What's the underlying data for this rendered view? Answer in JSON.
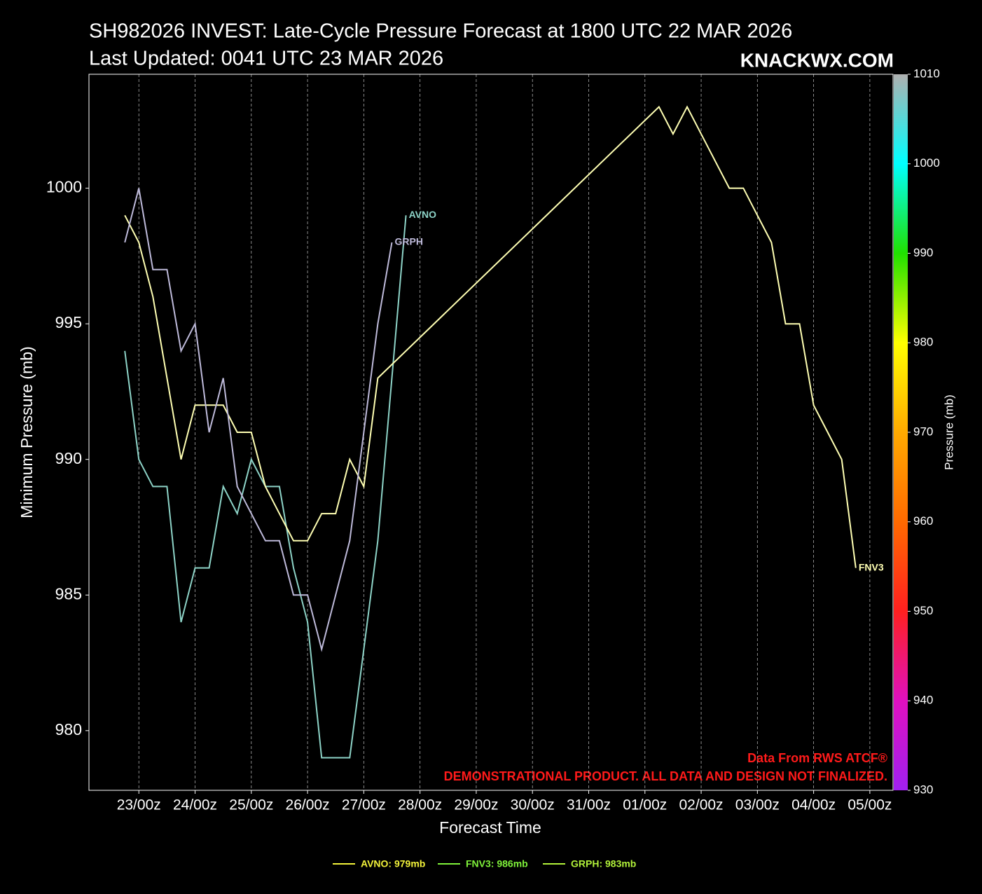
{
  "chart_data": {
    "type": "line",
    "title": "SH982026 INVEST: Late-Cycle Pressure Forecast at 1800 UTC 22 MAR 2026",
    "subtitle": "Last Updated: 0041 UTC 23 MAR 2026",
    "brand": "KNACKWX.COM",
    "x_label": "Forecast Time",
    "y_label": "Minimum Pressure (mb)",
    "annotations": [
      "Data From RWS ATCF®",
      "DEMONSTRATIONAL PRODUCT. ALL DATA AND DESIGN NOT FINALIZED."
    ],
    "xlim": [
      -15.3,
      327.9
    ],
    "xticks": [
      {
        "value": 6,
        "label": "23/00z"
      },
      {
        "value": 30,
        "label": "24/00z"
      },
      {
        "value": 54,
        "label": "25/00z"
      },
      {
        "value": 78,
        "label": "26/00z"
      },
      {
        "value": 102,
        "label": "27/00z"
      },
      {
        "value": 126,
        "label": "28/00z"
      },
      {
        "value": 150,
        "label": "29/00z"
      },
      {
        "value": 174,
        "label": "30/00z"
      },
      {
        "value": 198,
        "label": "31/00z"
      },
      {
        "value": 222,
        "label": "01/00z"
      },
      {
        "value": 246,
        "label": "02/00z"
      },
      {
        "value": 270,
        "label": "03/00z"
      },
      {
        "value": 294,
        "label": "04/00z"
      },
      {
        "value": 318,
        "label": "05/00z"
      }
    ],
    "ylim": [
      977.8,
      1004.2
    ],
    "yticks": [
      980,
      985,
      990,
      995,
      1000
    ],
    "grid": "x",
    "series": [
      {
        "name": "AVNO",
        "color": "#8dd3c7",
        "legend_label": "AVNO: 979mb",
        "legend_color": "#f2f23a",
        "x": [
          0,
          6,
          12,
          18,
          24,
          30,
          36,
          42,
          48,
          54,
          60,
          66,
          72,
          78,
          84,
          90,
          96,
          102,
          108,
          114,
          120
        ],
        "values": [
          994,
          990,
          989,
          989,
          984,
          986,
          986,
          989,
          988,
          990,
          989,
          989,
          986,
          984,
          979,
          979,
          979,
          983,
          987,
          993,
          999
        ]
      },
      {
        "name": "FNV3",
        "color": "#ffffb3",
        "legend_label": "FNV3: 986mb",
        "legend_color": "#7ff23a",
        "x": [
          0,
          6,
          12,
          18,
          24,
          30,
          36,
          42,
          48,
          54,
          60,
          66,
          72,
          78,
          84,
          90,
          96,
          102,
          108,
          228,
          234,
          240,
          246,
          252,
          258,
          264,
          270,
          276,
          282,
          288,
          294,
          300,
          306,
          312
        ],
        "values": [
          999,
          998,
          996,
          993,
          990,
          992,
          992,
          992,
          991,
          991,
          989,
          988,
          987,
          987,
          988,
          988,
          990,
          989,
          993,
          1003,
          1002,
          1003,
          1002,
          1001,
          1000,
          1000,
          999,
          998,
          995,
          995,
          992,
          991,
          990,
          986
        ]
      },
      {
        "name": "GRPH",
        "color": "#bebada",
        "legend_label": "GRPH: 983mb",
        "legend_color": "#b2f23a",
        "x": [
          0,
          6,
          12,
          18,
          24,
          30,
          36,
          42,
          48,
          54,
          60,
          66,
          72,
          78,
          84,
          90,
          96,
          102,
          108,
          114
        ],
        "values": [
          998,
          1000,
          997,
          997,
          994,
          995,
          991,
          993,
          989,
          988,
          987,
          987,
          985,
          985,
          983,
          985,
          987,
          991,
          995,
          998
        ]
      }
    ],
    "colorbar": {
      "label": "Pressure (mb)",
      "lim": [
        930,
        1010
      ],
      "ticks": [
        930,
        940,
        950,
        960,
        970,
        980,
        990,
        1000,
        1010
      ],
      "colors": [
        "#a020f0",
        "#e010c0",
        "#ff2020",
        "#ff6a00",
        "#ffaa00",
        "#ffff00",
        "#20e000",
        "#00ffff",
        "#b0b0b0"
      ]
    }
  }
}
